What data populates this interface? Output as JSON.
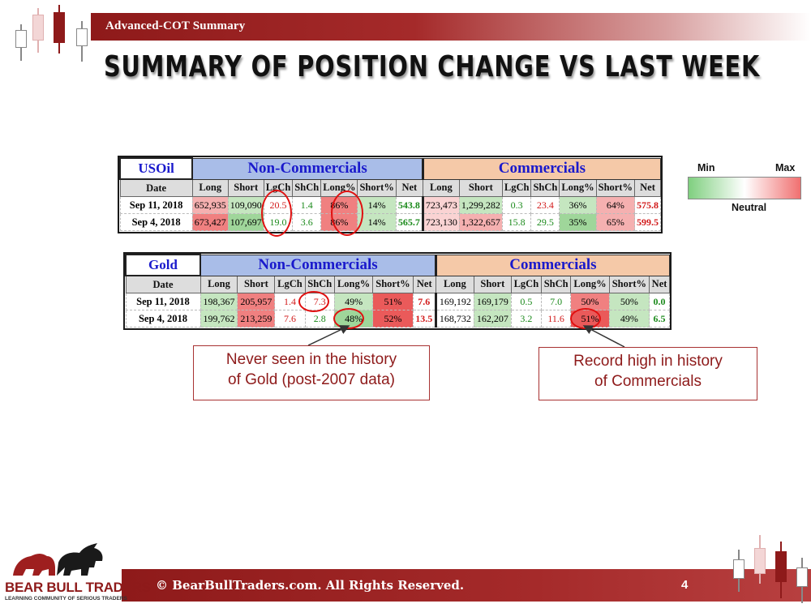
{
  "header": {
    "label": "Advanced-COT Summary",
    "title": "Summary of Position Change vs Last Week"
  },
  "colors": {
    "brand": "#8e1a1a",
    "noncomm_header": "#a9bde8",
    "comm_header": "#f5c9a8"
  },
  "legend": {
    "min": "Min",
    "max": "Max",
    "neutral": "Neutral"
  },
  "columns": [
    "Date",
    "Long",
    "Short",
    "LgCh",
    "ShCh",
    "Long%",
    "Short%",
    "Net"
  ],
  "usoil": {
    "asset": "USOil",
    "noncomm_title": "Non-Commercials",
    "comm_title": "Commercials",
    "rows": [
      {
        "date": "Sep 11, 2018",
        "nc": [
          "652,935",
          "109,090",
          "20.5",
          "1.4",
          "86%",
          "14%",
          "543.8"
        ],
        "c": [
          "723,473",
          "1,299,282",
          "0.3",
          "23.4",
          "36%",
          "64%",
          "575.8"
        ]
      },
      {
        "date": "Sep 4, 2018",
        "nc": [
          "673,427",
          "107,697",
          "19.0",
          "3.6",
          "86%",
          "14%",
          "565.7"
        ],
        "c": [
          "723,130",
          "1,322,657",
          "15.8",
          "29.5",
          "35%",
          "65%",
          "599.5"
        ]
      }
    ]
  },
  "gold": {
    "asset": "Gold",
    "noncomm_title": "Non-Commercials",
    "comm_title": "Commercials",
    "rows": [
      {
        "date": "Sep 11, 2018",
        "nc": [
          "198,367",
          "205,957",
          "1.4",
          "7.3",
          "49%",
          "51%",
          "7.6"
        ],
        "c": [
          "169,192",
          "169,179",
          "0.5",
          "7.0",
          "50%",
          "50%",
          "0.0"
        ]
      },
      {
        "date": "Sep 4, 2018",
        "nc": [
          "199,762",
          "213,259",
          "7.6",
          "2.8",
          "48%",
          "52%",
          "13.5"
        ],
        "c": [
          "168,732",
          "162,207",
          "3.2",
          "11.6",
          "51%",
          "49%",
          "6.5"
        ]
      }
    ]
  },
  "callouts": {
    "left": [
      "Never seen in the history",
      "of Gold (post-2007 data)"
    ],
    "right": [
      "Record high in history",
      "of Commercials"
    ]
  },
  "footer": {
    "copyright": "© BearBullTraders.com. All Rights Reserved.",
    "page_number": "4",
    "logo_name": "BEAR BULL TRADERS",
    "logo_tagline": "LEARNING COMMUNITY OF SERIOUS TRADERS"
  }
}
